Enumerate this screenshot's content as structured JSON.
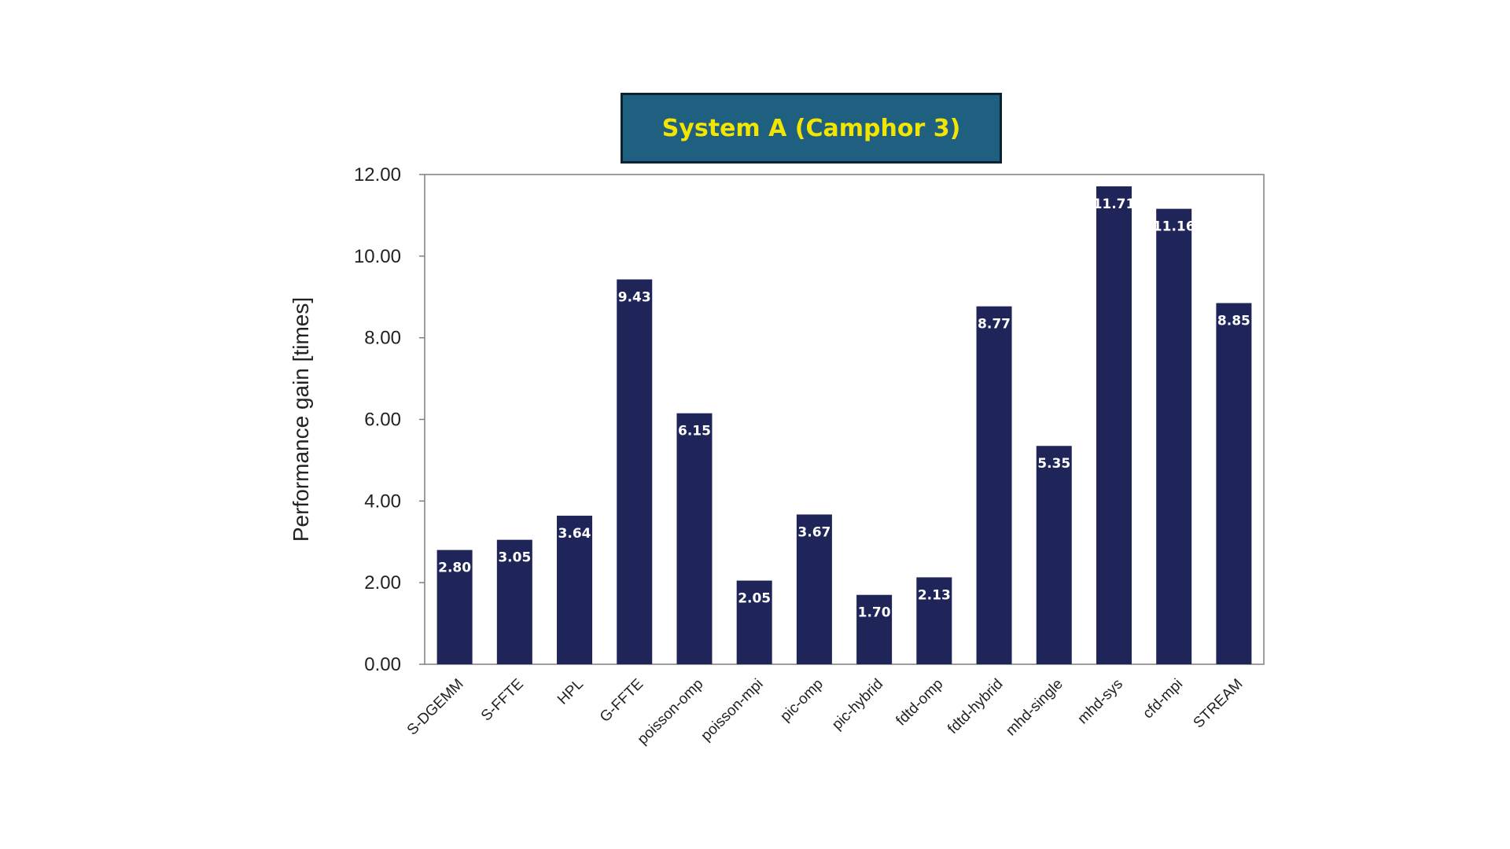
{
  "chart_data": {
    "type": "bar",
    "title": "System A (Camphor 3)",
    "xlabel": "",
    "ylabel": "Performance gain [times]",
    "categories": [
      "S-DGEMM",
      "S-FFTE",
      "HPL",
      "G-FFTE",
      "poisson-omp",
      "poisson-mpi",
      "pic-omp",
      "pic-hybrid",
      "fdtd-omp",
      "fdtd-hybrid",
      "mhd-single",
      "mhd-sys",
      "cfd-mpi",
      "STREAM"
    ],
    "values": [
      2.8,
      3.05,
      3.64,
      9.43,
      6.15,
      2.05,
      3.67,
      1.7,
      2.13,
      8.77,
      5.35,
      11.71,
      11.16,
      8.85
    ],
    "value_labels": [
      "2.80",
      "3.05",
      "3.64",
      "9.43",
      "6.15",
      "2.05",
      "3.67",
      "1.70",
      "2.13",
      "8.77",
      "5.35",
      "11.71",
      "11.16",
      "8.85"
    ],
    "ylim": [
      0,
      12
    ],
    "yticks": [
      0,
      2,
      4,
      6,
      8,
      10,
      12
    ],
    "ytick_labels": [
      "0.00",
      "2.00",
      "4.00",
      "6.00",
      "8.00",
      "10.00",
      "12.00"
    ],
    "grid": false,
    "legend": "none",
    "bar_color": "#1f2459",
    "title_bg": "#1f5f7f",
    "title_color": "#f2e600"
  }
}
